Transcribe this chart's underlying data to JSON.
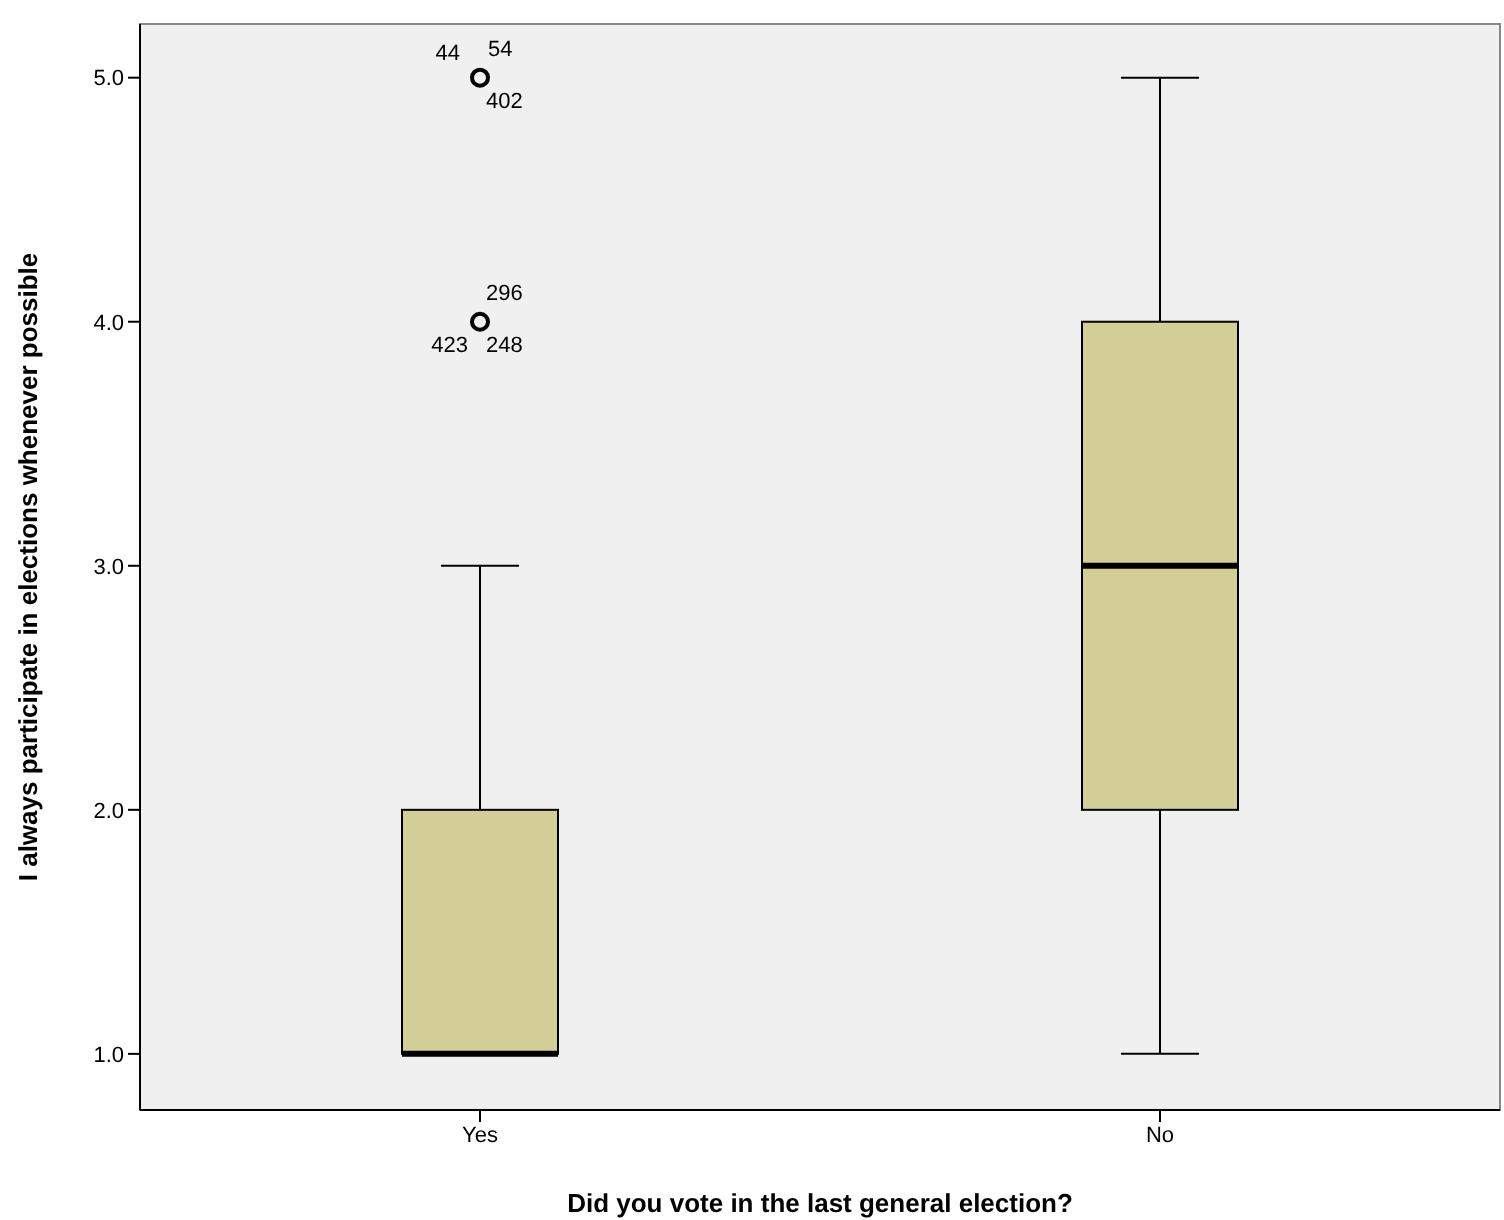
{
  "chart_data": {
    "type": "box",
    "xlabel": "Did you vote in the last general election?",
    "ylabel": "I always participate in elections whenever possible",
    "categories": [
      "Yes",
      "No"
    ],
    "boxes": [
      {
        "low": 1,
        "q1": 1,
        "median": 1,
        "q3": 2,
        "high": 3,
        "outliers": [
          5,
          4
        ]
      },
      {
        "low": 1,
        "q1": 2,
        "median": 3,
        "q3": 4,
        "high": 5
      }
    ],
    "color": "#d3ce97",
    "ylim": [
      0.77,
      5.22
    ],
    "yticks": [
      {
        "value": 1,
        "label": "1.0"
      },
      {
        "value": 2,
        "label": "2.0"
      },
      {
        "value": 3,
        "label": "3.0"
      },
      {
        "value": 4,
        "label": "4.0"
      },
      {
        "value": 5,
        "label": "5.0"
      }
    ],
    "grid": false,
    "legend": false,
    "annotations": [
      "44",
      "54",
      "402",
      "296",
      "423",
      "248"
    ]
  }
}
